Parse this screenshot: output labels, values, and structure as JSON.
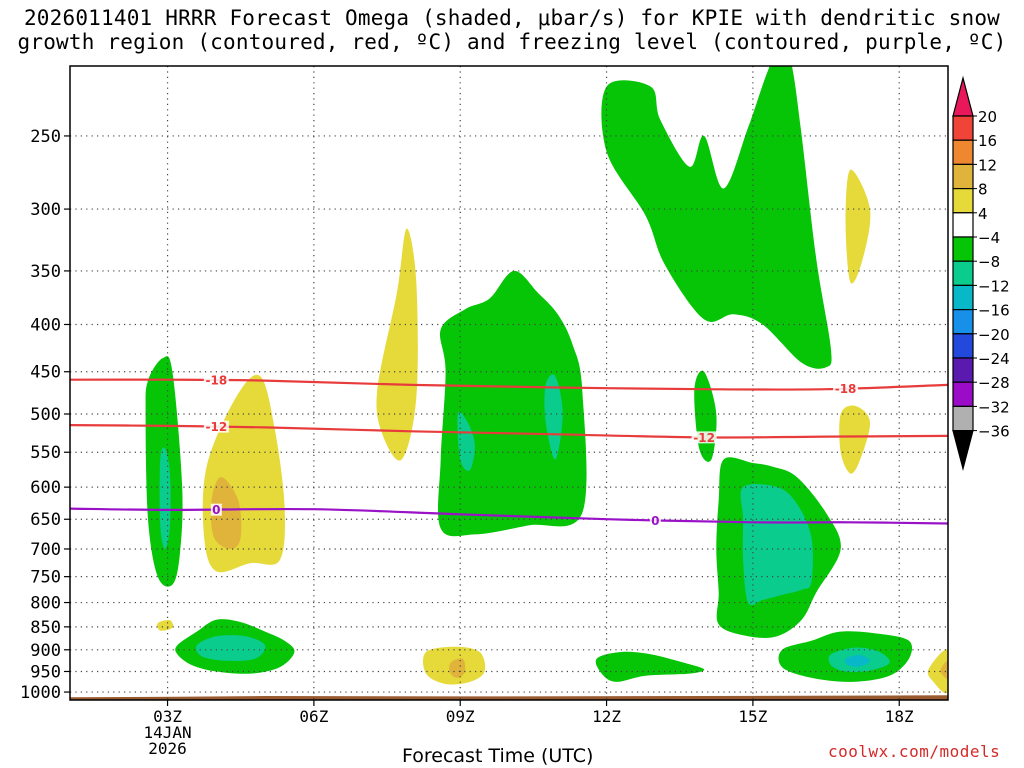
{
  "title": {
    "line1": "2026011401 HRRR Forecast Omega (shaded, μbar/s) for KPIE with dendritic snow",
    "line2": "growth region (contoured, red, ºC) and freezing level (contoured, purple, ºC)"
  },
  "credit": "coolwx.com/models",
  "chart_data": {
    "type": "time-height contour",
    "title": "2026011401 HRRR Forecast Omega (shaded, μbar/s) for KPIE with dendritic snow growth region (contoured, red, ºC) and freezing level (contoured, purple, ºC)",
    "xlabel": "Forecast Time (UTC)",
    "ylabel": "",
    "x_range_hours": [
      1,
      19
    ],
    "y_axis": "log pressure (hPa)",
    "y_range_hpa": [
      1020,
      210
    ],
    "x_ticks": [
      {
        "hour": 3,
        "label": "03Z",
        "sub1": "14JAN",
        "sub2": "2026"
      },
      {
        "hour": 6,
        "label": "06Z"
      },
      {
        "hour": 9,
        "label": "09Z"
      },
      {
        "hour": 12,
        "label": "12Z"
      },
      {
        "hour": 15,
        "label": "15Z"
      },
      {
        "hour": 18,
        "label": "18Z"
      }
    ],
    "y_ticks": [
      250,
      300,
      350,
      400,
      450,
      500,
      550,
      600,
      650,
      700,
      750,
      800,
      850,
      900,
      950,
      1000
    ],
    "colorbar": {
      "labels": [
        "20",
        "16",
        "12",
        "8",
        "4",
        "−4",
        "−8",
        "−12",
        "−16",
        "−20",
        "−24",
        "−28",
        "−32",
        "−36"
      ],
      "colors": [
        "#e8185a",
        "#f04438",
        "#ee8830",
        "#e0b43a",
        "#e6da3a",
        "#ffffff",
        "#06c406",
        "#0acc8c",
        "#08b8c8",
        "#1690e8",
        "#2248dc",
        "#5a1ab0",
        "#9a0cc8",
        "#b0b0b0",
        "#000000"
      ]
    },
    "temperature_contours": [
      {
        "label": "-18",
        "color": "#e83c3c",
        "points": [
          [
            1,
            459
          ],
          [
            3,
            459
          ],
          [
            5,
            460
          ],
          [
            8,
            465
          ],
          [
            11,
            468
          ],
          [
            14,
            470
          ],
          [
            16.5,
            470
          ],
          [
            19,
            465
          ]
        ]
      },
      {
        "label": "-12",
        "color": "#e83c3c",
        "points": [
          [
            1,
            514
          ],
          [
            3,
            515
          ],
          [
            5,
            517
          ],
          [
            8,
            522
          ],
          [
            11,
            526
          ],
          [
            14,
            530
          ],
          [
            16.5,
            529
          ],
          [
            19,
            528
          ]
        ]
      },
      {
        "label": "0",
        "color": "#9a12c8",
        "points": [
          [
            1,
            633
          ],
          [
            3,
            635
          ],
          [
            6,
            634
          ],
          [
            9,
            642
          ],
          [
            12,
            650
          ],
          [
            15,
            655
          ],
          [
            17,
            655
          ],
          [
            19,
            657
          ]
        ]
      }
    ],
    "omega_regions": [
      {
        "level": "-8",
        "color": "#06c406",
        "points": [
          [
            2.6,
            460
          ],
          [
            2.9,
            435
          ],
          [
            3.1,
            450
          ],
          [
            3.3,
            600
          ],
          [
            3.25,
            710
          ],
          [
            3.1,
            765
          ],
          [
            2.8,
            750
          ],
          [
            2.6,
            650
          ],
          [
            2.55,
            500
          ]
        ]
      },
      {
        "level": "-12",
        "color": "#0acc8c",
        "points": [
          [
            2.85,
            560
          ],
          [
            2.95,
            545
          ],
          [
            3.05,
            580
          ],
          [
            3.05,
            660
          ],
          [
            2.95,
            700
          ],
          [
            2.85,
            660
          ]
        ]
      },
      {
        "level": "4",
        "color": "#e6da3a",
        "points": [
          [
            3.8,
            570
          ],
          [
            4.4,
            480
          ],
          [
            4.9,
            455
          ],
          [
            5.2,
            520
          ],
          [
            5.4,
            630
          ],
          [
            5.3,
            720
          ],
          [
            4.7,
            725
          ],
          [
            4.0,
            740
          ],
          [
            3.75,
            680
          ]
        ]
      },
      {
        "level": "8",
        "color": "#e0b43a",
        "points": [
          [
            3.9,
            620
          ],
          [
            4.1,
            585
          ],
          [
            4.45,
            620
          ],
          [
            4.5,
            680
          ],
          [
            4.3,
            700
          ],
          [
            3.95,
            680
          ]
        ]
      },
      {
        "level": "4",
        "color": "#e6da3a",
        "points": [
          [
            7.3,
            470
          ],
          [
            7.7,
            370
          ],
          [
            7.9,
            315
          ],
          [
            8.1,
            360
          ],
          [
            8.1,
            480
          ],
          [
            7.8,
            560
          ],
          [
            7.4,
            525
          ]
        ]
      },
      {
        "level": "-8",
        "color": "#06c406",
        "points": [
          [
            8.6,
            405
          ],
          [
            9.1,
            385
          ],
          [
            9.6,
            375
          ],
          [
            10.1,
            350
          ],
          [
            10.6,
            370
          ],
          [
            11.0,
            390
          ],
          [
            11.3,
            420
          ],
          [
            11.5,
            470
          ],
          [
            11.5,
            640
          ],
          [
            10.4,
            660
          ],
          [
            9.3,
            675
          ],
          [
            8.6,
            665
          ],
          [
            8.6,
            560
          ],
          [
            8.7,
            450
          ]
        ]
      },
      {
        "level": "-12",
        "color": "#0acc8c",
        "points": [
          [
            8.95,
            500
          ],
          [
            9.15,
            510
          ],
          [
            9.3,
            540
          ],
          [
            9.2,
            575
          ],
          [
            9.0,
            560
          ]
        ]
      },
      {
        "level": "-12",
        "color": "#0acc8c",
        "points": [
          [
            10.75,
            465
          ],
          [
            10.95,
            455
          ],
          [
            11.1,
            500
          ],
          [
            10.95,
            560
          ],
          [
            10.75,
            510
          ]
        ]
      },
      {
        "level": "-8",
        "color": "#06c406",
        "points": [
          [
            12.0,
            221
          ],
          [
            12.9,
            221
          ],
          [
            13.1,
            240
          ],
          [
            13.7,
            270
          ],
          [
            14.0,
            250
          ],
          [
            14.4,
            285
          ],
          [
            14.9,
            245
          ],
          [
            15.3,
            213
          ],
          [
            15.6,
            198
          ],
          [
            15.8,
            210
          ],
          [
            16.0,
            250
          ],
          [
            16.3,
            340
          ],
          [
            16.6,
            425
          ],
          [
            16.5,
            445
          ],
          [
            16.0,
            440
          ],
          [
            15.2,
            400
          ],
          [
            14.6,
            390
          ],
          [
            14.0,
            395
          ],
          [
            13.2,
            345
          ],
          [
            12.8,
            305
          ],
          [
            12.0,
            260
          ]
        ]
      },
      {
        "level": "4",
        "color": "#e6da3a",
        "points": [
          [
            17.0,
            272
          ],
          [
            17.4,
            300
          ],
          [
            17.25,
            340
          ],
          [
            17.0,
            360
          ],
          [
            16.9,
            310
          ]
        ]
      },
      {
        "level": "-8",
        "color": "#06c406",
        "points": [
          [
            13.8,
            470
          ],
          [
            14.0,
            450
          ],
          [
            14.25,
            500
          ],
          [
            14.15,
            560
          ],
          [
            13.9,
            545
          ]
        ]
      },
      {
        "level": "4",
        "color": "#e6da3a",
        "points": [
          [
            16.8,
            500
          ],
          [
            17.1,
            490
          ],
          [
            17.4,
            510
          ],
          [
            17.2,
            560
          ],
          [
            17.0,
            580
          ],
          [
            16.8,
            550
          ]
        ]
      },
      {
        "level": "-8",
        "color": "#06c406",
        "points": [
          [
            14.4,
            560
          ],
          [
            15.0,
            565
          ],
          [
            15.4,
            570
          ],
          [
            15.9,
            585
          ],
          [
            16.5,
            640
          ],
          [
            16.8,
            700
          ],
          [
            16.3,
            780
          ],
          [
            16.0,
            835
          ],
          [
            15.5,
            870
          ],
          [
            14.9,
            870
          ],
          [
            14.3,
            845
          ],
          [
            14.3,
            780
          ],
          [
            14.25,
            700
          ],
          [
            14.3,
            620
          ]
        ]
      },
      {
        "level": "-12",
        "color": "#0acc8c",
        "points": [
          [
            14.8,
            600
          ],
          [
            15.5,
            600
          ],
          [
            15.9,
            625
          ],
          [
            16.2,
            680
          ],
          [
            16.2,
            760
          ],
          [
            16.0,
            775
          ],
          [
            15.6,
            785
          ],
          [
            15.2,
            795
          ],
          [
            14.9,
            800
          ],
          [
            14.8,
            720
          ],
          [
            14.8,
            650
          ]
        ]
      },
      {
        "level": "-8",
        "color": "#06c406",
        "points": [
          [
            3.2,
            890
          ],
          [
            3.6,
            860
          ],
          [
            4.0,
            835
          ],
          [
            4.5,
            840
          ],
          [
            5.0,
            860
          ],
          [
            5.4,
            880
          ],
          [
            5.6,
            905
          ],
          [
            5.3,
            940
          ],
          [
            4.7,
            955
          ],
          [
            4.0,
            950
          ],
          [
            3.5,
            935
          ],
          [
            3.2,
            910
          ]
        ]
      },
      {
        "level": "-12",
        "color": "#0acc8c",
        "points": [
          [
            3.6,
            890
          ],
          [
            4.0,
            870
          ],
          [
            4.6,
            870
          ],
          [
            5.0,
            890
          ],
          [
            4.8,
            920
          ],
          [
            4.2,
            925
          ],
          [
            3.7,
            915
          ]
        ]
      },
      {
        "level": "4",
        "color": "#e6da3a",
        "points": [
          [
            2.8,
            842
          ],
          [
            3.05,
            836
          ],
          [
            3.1,
            852
          ],
          [
            2.85,
            858
          ]
        ]
      },
      {
        "level": "4",
        "color": "#e6da3a",
        "points": [
          [
            8.3,
            905
          ],
          [
            8.9,
            893
          ],
          [
            9.4,
            905
          ],
          [
            9.5,
            950
          ],
          [
            9.2,
            975
          ],
          [
            8.7,
            980
          ],
          [
            8.3,
            955
          ]
        ]
      },
      {
        "level": "8",
        "color": "#e0b43a",
        "points": [
          [
            8.8,
            930
          ],
          [
            9.05,
            920
          ],
          [
            9.1,
            950
          ],
          [
            8.95,
            965
          ],
          [
            8.8,
            955
          ]
        ]
      },
      {
        "level": "-8",
        "color": "#06c406",
        "points": [
          [
            11.8,
            920
          ],
          [
            12.3,
            905
          ],
          [
            12.9,
            910
          ],
          [
            13.6,
            930
          ],
          [
            14.0,
            945
          ],
          [
            13.7,
            955
          ],
          [
            12.8,
            960
          ],
          [
            12.2,
            975
          ],
          [
            11.9,
            955
          ]
        ]
      },
      {
        "level": "-8",
        "color": "#06c406",
        "points": [
          [
            15.6,
            900
          ],
          [
            16.2,
            880
          ],
          [
            16.8,
            860
          ],
          [
            17.6,
            865
          ],
          [
            18.2,
            880
          ],
          [
            18.2,
            920
          ],
          [
            17.8,
            960
          ],
          [
            17.0,
            975
          ],
          [
            16.2,
            965
          ],
          [
            15.6,
            940
          ]
        ]
      },
      {
        "level": "-12",
        "color": "#0acc8c",
        "points": [
          [
            16.6,
            910
          ],
          [
            17.1,
            895
          ],
          [
            17.6,
            905
          ],
          [
            17.8,
            930
          ],
          [
            17.4,
            948
          ],
          [
            16.9,
            950
          ],
          [
            16.6,
            935
          ]
        ]
      },
      {
        "level": "-16",
        "color": "#08b8c8",
        "points": [
          [
            16.9,
            920
          ],
          [
            17.2,
            912
          ],
          [
            17.4,
            925
          ],
          [
            17.2,
            938
          ],
          [
            16.95,
            935
          ]
        ]
      },
      {
        "level": "4",
        "color": "#e6da3a",
        "points": [
          [
            18.6,
            945
          ],
          [
            19.0,
            900
          ],
          [
            19.0,
            1000
          ],
          [
            18.7,
            975
          ]
        ]
      },
      {
        "level": "8",
        "color": "#e0b43a",
        "points": [
          [
            18.85,
            945
          ],
          [
            19.0,
            925
          ],
          [
            19.0,
            965
          ],
          [
            18.9,
            960
          ]
        ]
      }
    ],
    "terrain": {
      "color": "#9a5a30",
      "top_hpa": 1012,
      "points": [
        [
          1,
          1013
        ],
        [
          3.2,
          1012
        ],
        [
          5,
          1010
        ],
        [
          9,
          1011
        ],
        [
          14,
          1010
        ],
        [
          19,
          1008
        ]
      ]
    }
  }
}
